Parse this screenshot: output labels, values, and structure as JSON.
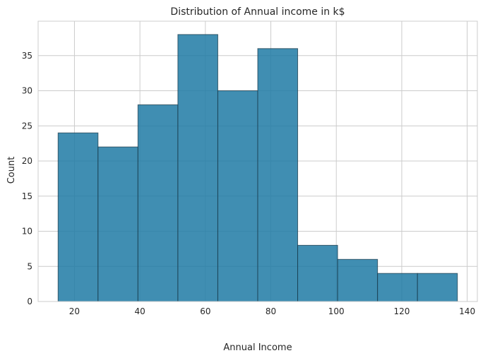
{
  "chart_data": {
    "type": "bar",
    "title": "Distribution of Annual income in k$",
    "xlabel": "Annual Income",
    "ylabel": "Count",
    "bins": [
      {
        "x0": 15.0,
        "x1": 27.2,
        "count": 24
      },
      {
        "x0": 27.2,
        "x1": 39.4,
        "count": 22
      },
      {
        "x0": 39.4,
        "x1": 51.6,
        "count": 28
      },
      {
        "x0": 51.6,
        "x1": 63.8,
        "count": 38
      },
      {
        "x0": 63.8,
        "x1": 76.0,
        "count": 30
      },
      {
        "x0": 76.0,
        "x1": 88.2,
        "count": 36
      },
      {
        "x0": 88.2,
        "x1": 100.4,
        "count": 8
      },
      {
        "x0": 100.4,
        "x1": 112.6,
        "count": 6
      },
      {
        "x0": 112.6,
        "x1": 124.8,
        "count": 4
      },
      {
        "x0": 124.8,
        "x1": 137.0,
        "count": 4
      }
    ],
    "xlim": [
      8.9,
      143.1
    ],
    "ylim": [
      0,
      39.9
    ],
    "xticks": [
      20,
      40,
      60,
      80,
      100,
      120,
      140
    ],
    "yticks": [
      0,
      5,
      10,
      15,
      20,
      25,
      30,
      35
    ],
    "grid": true,
    "bar_color": "#1f7aa5",
    "edge_color": "#1a3a4a"
  }
}
